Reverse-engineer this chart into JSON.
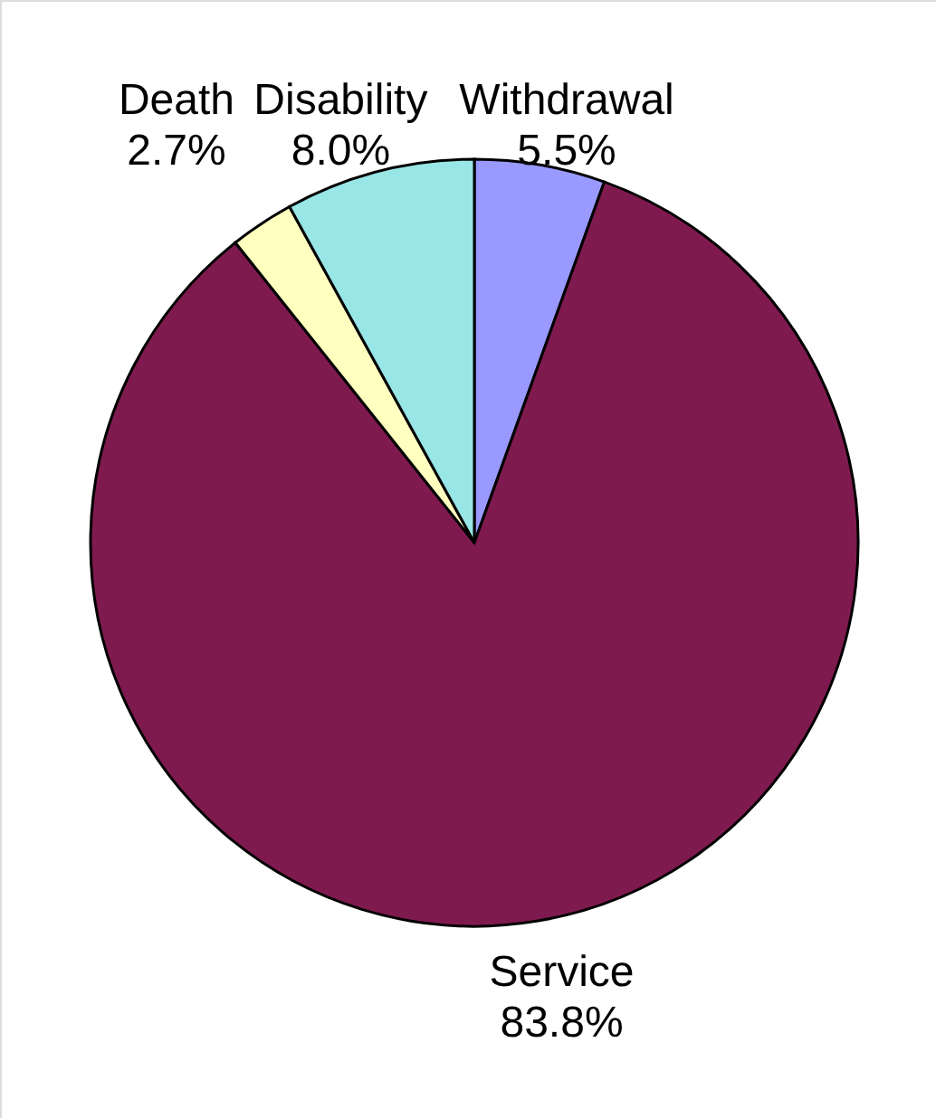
{
  "chart_data": {
    "type": "pie",
    "categories": [
      "Withdrawal",
      "Service",
      "Death",
      "Disability"
    ],
    "values": [
      5.5,
      83.8,
      2.7,
      8.0
    ],
    "value_labels": [
      "5.5%",
      "83.8%",
      "2.7%",
      "8.0%"
    ],
    "colors": [
      "#9999ff",
      "#7f1a4f",
      "#ffffc0",
      "#99e6e6"
    ]
  }
}
